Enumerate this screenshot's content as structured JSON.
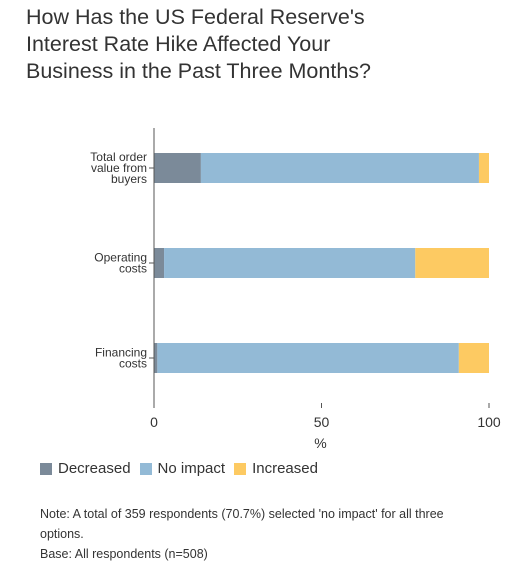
{
  "title_lines": [
    "How Has the US Federal Reserve's",
    "Interest Rate Hike Affected Your",
    "Business in the Past Three Months?"
  ],
  "colors": {
    "Decreased": "#7b8a99",
    "No impact": "#93bad6",
    "Increased": "#fdca62"
  },
  "chart_data": {
    "type": "bar",
    "orientation": "horizontal",
    "stacked": true,
    "title": "How Has the US Federal Reserve's Interest Rate Hike Affected Your Business in the Past Three Months?",
    "xlabel": "%",
    "ylabel": "",
    "xlim": [
      0,
      100
    ],
    "xticks": [
      0,
      50,
      100
    ],
    "categories": [
      [
        "Total order",
        "value from",
        "buyers"
      ],
      [
        "Operating",
        "costs"
      ],
      [
        "Financing",
        "costs"
      ]
    ],
    "series": [
      {
        "name": "Decreased",
        "values": [
          14,
          3,
          1
        ]
      },
      {
        "name": "No impact",
        "values": [
          83,
          75,
          90
        ]
      },
      {
        "name": "Increased",
        "values": [
          3,
          22,
          9
        ]
      }
    ],
    "legend_position": "bottom-left",
    "grid": false
  },
  "legend": [
    "Decreased",
    "No impact",
    "Increased"
  ],
  "note": {
    "line1": "Note: A total of 359 respondents (70.7%) selected 'no impact' for all three options.",
    "line2": "Base: All respondents (n=508)"
  }
}
